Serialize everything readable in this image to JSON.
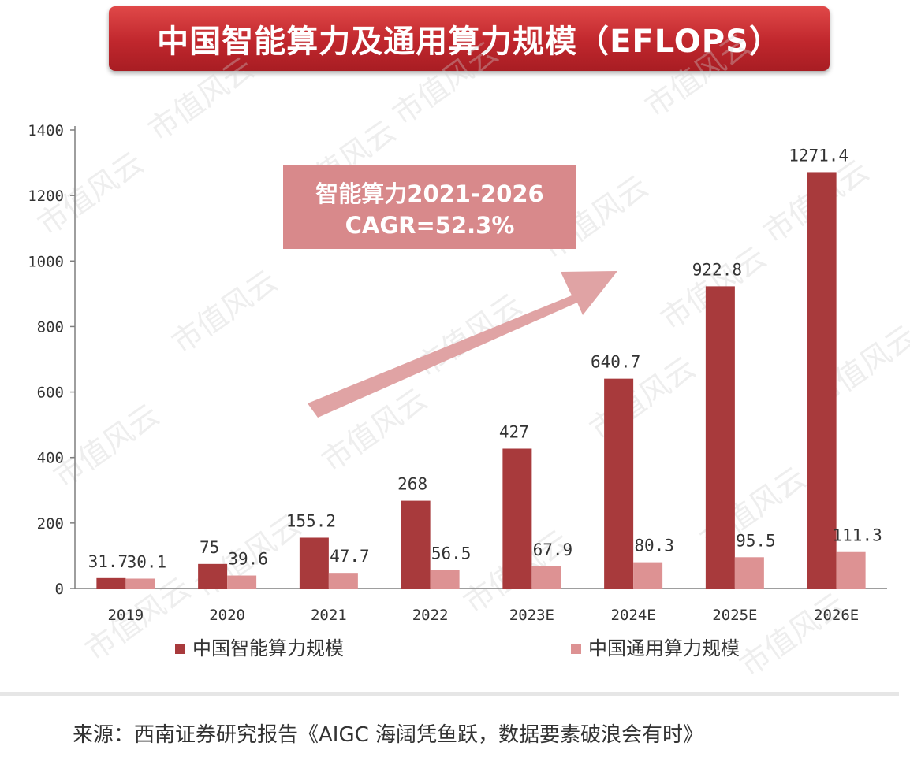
{
  "chart_data": {
    "type": "bar",
    "title": "中国智能算力及通用算力规模（EFLOPS）",
    "categories": [
      "2019",
      "2020",
      "2021",
      "2022",
      "2023E",
      "2024E",
      "2025E",
      "2026E"
    ],
    "series": [
      {
        "name": "中国智能算力规模",
        "values": [
          31.7,
          75,
          155.2,
          268,
          427,
          640.7,
          922.8,
          1271.4
        ],
        "labels": [
          "31.7",
          "75",
          "155.2",
          "268",
          "427",
          "640.7",
          "922.8",
          "1271.4"
        ],
        "color": "#a83a3c"
      },
      {
        "name": "中国通用算力规模",
        "values": [
          30.1,
          39.6,
          47.7,
          56.5,
          67.9,
          80.3,
          95.5,
          111.3
        ],
        "labels": [
          "30.1",
          "39.6",
          "47.7",
          "56.5",
          "67.9",
          "80.3",
          "95.5",
          "111.3"
        ],
        "color": "#dd9293"
      }
    ],
    "y_ticks": [
      "0",
      "200",
      "400",
      "600",
      "800",
      "1000",
      "1200",
      "1400"
    ],
    "ylim": [
      0,
      1400
    ],
    "xlabel": "",
    "ylabel": "",
    "legend_position": "bottom",
    "annotation": {
      "line1": "智能算力2021-2026",
      "line2": "CAGR=52.3%"
    }
  },
  "source_text": "来源：西南证券研究报告《AIGC 海阔凭鱼跃，数据要素破浪会有时》",
  "watermark_text": "市值风云",
  "colors": {
    "banner": "#c0272d",
    "annotation_box": "#d8898b",
    "arrow": "#e0a3a4"
  }
}
